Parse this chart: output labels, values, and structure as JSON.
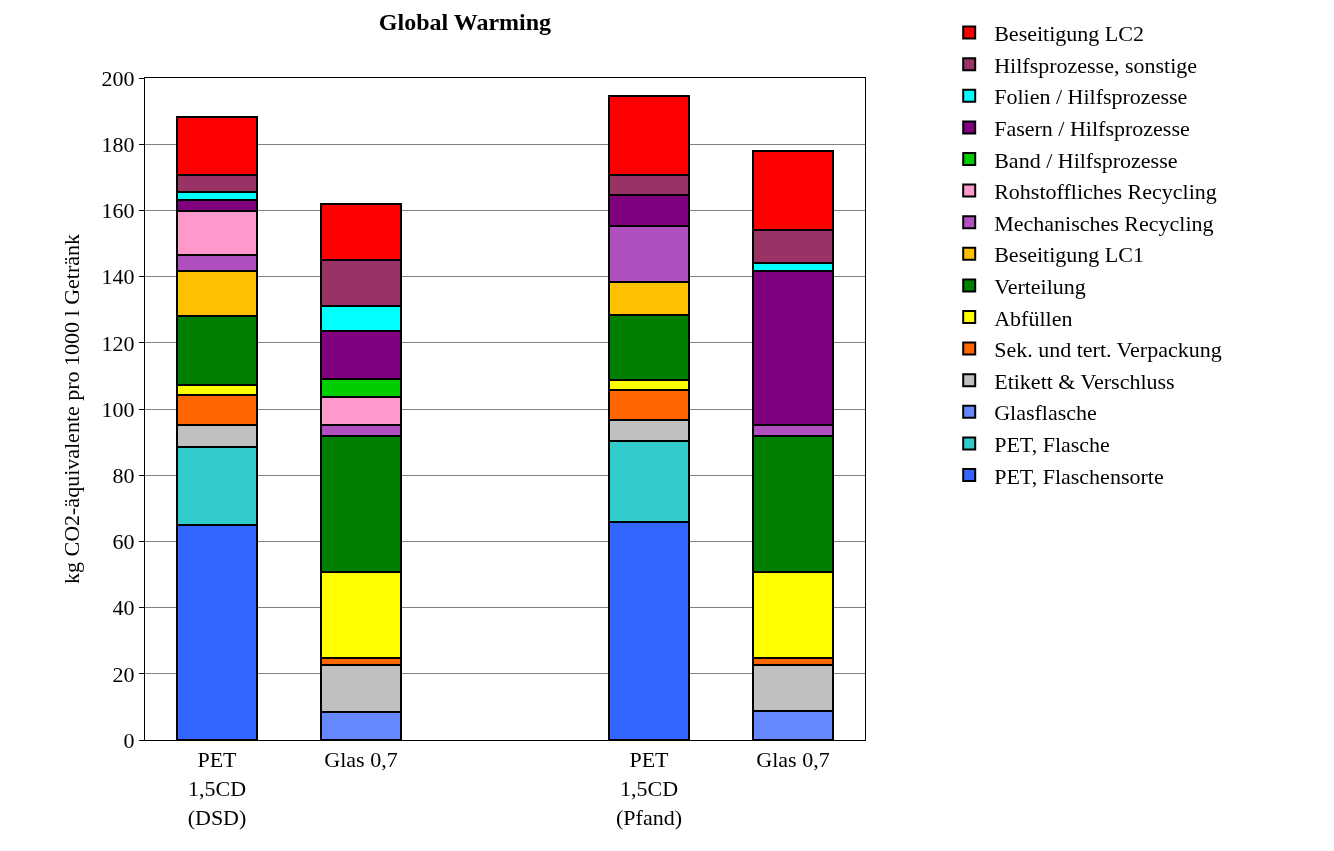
{
  "chart_data": {
    "type": "bar",
    "stacked": true,
    "title": "Global Warming",
    "ylabel": "kg CO2-äquivalente pro 1000 l Getränk",
    "categories": [
      "PET\n1,5CD\n(DSD)",
      "Glas 0,7",
      null,
      "PET\n1,5CD\n(Pfand)",
      "Glas 0,7"
    ],
    "ylim": [
      0,
      200
    ],
    "yticks": [
      0,
      20,
      40,
      60,
      80,
      100,
      120,
      140,
      160,
      180,
      200
    ],
    "grid": "y",
    "legend": "right",
    "series": [
      {
        "name": "PET, Flaschensorte",
        "color": "#3366ff",
        "values": [
          65,
          0,
          null,
          65.8,
          0
        ]
      },
      {
        "name": "PET, Flasche",
        "color": "#33cccc",
        "values": [
          23.6,
          0,
          null,
          24.6,
          0
        ]
      },
      {
        "name": "Glasflasche",
        "color": "#6688ff",
        "values": [
          0,
          8.4,
          null,
          0,
          8.7
        ]
      },
      {
        "name": "Etikett & Verschluss",
        "color": "#c0c0c0",
        "values": [
          6.6,
          14.4,
          null,
          6.3,
          14.1
        ]
      },
      {
        "name": "Sek. und tert. Verpackung",
        "color": "#ff6600",
        "values": [
          9,
          2.1,
          null,
          9,
          2.1
        ]
      },
      {
        "name": "Abfüllen",
        "color": "#ffff00",
        "values": [
          3,
          25.9,
          null,
          3,
          25.9
        ]
      },
      {
        "name": "Verteilung",
        "color": "#008000",
        "values": [
          21,
          41.1,
          null,
          19.8,
          41.1
        ]
      },
      {
        "name": "Beseitigung LC1",
        "color": "#ffc000",
        "values": [
          13.5,
          0,
          null,
          9.9,
          0
        ]
      },
      {
        "name": "Mechanisches Recycling",
        "color": "#b04fc0",
        "values": [
          4.8,
          3.3,
          null,
          16.9,
          3.3
        ]
      },
      {
        "name": "Rohstoffliches Recycling",
        "color": "#ff99cc",
        "values": [
          13.3,
          8.4,
          null,
          0,
          0
        ]
      },
      {
        "name": "Band / Hilfsprozesse",
        "color": "#00cc00",
        "values": [
          0,
          5.4,
          null,
          0,
          0
        ]
      },
      {
        "name": "Fasern / Hilfsprozesse",
        "color": "#800080",
        "values": [
          3.2,
          14.7,
          null,
          9.3,
          46.5
        ]
      },
      {
        "name": "Folien / Hilfsprozesse",
        "color": "#00ffff",
        "values": [
          2.5,
          7.5,
          null,
          0,
          2.4
        ]
      },
      {
        "name": "Hilfsprozesse, sonstige",
        "color": "#993366",
        "values": [
          5.1,
          13.8,
          null,
          6,
          9.9
        ]
      },
      {
        "name": "Beseitigung LC2",
        "color": "#ff0000",
        "values": [
          17.7,
          16.9,
          null,
          24,
          24
        ]
      }
    ]
  }
}
